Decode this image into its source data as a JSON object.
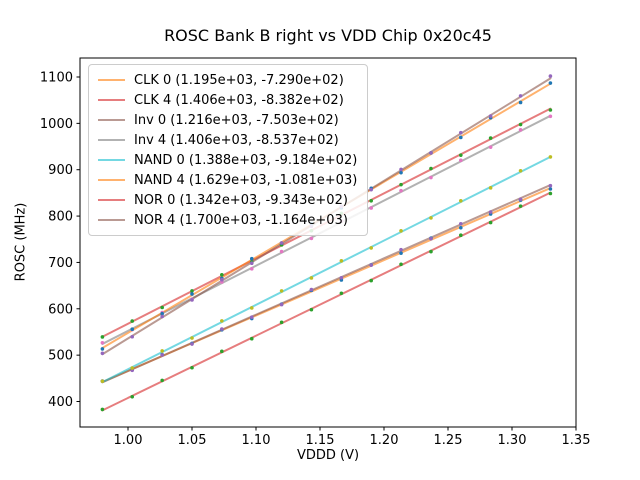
{
  "chart_data": {
    "type": "scatter",
    "title": "ROSC Bank B right vs VDD Chip 0x20c45",
    "xlabel": "VDDD (V)",
    "ylabel": "ROSC (MHz)",
    "xlim": [
      0.9625,
      1.35
    ],
    "ylim": [
      345,
      1141
    ],
    "xticks": [
      1.0,
      1.05,
      1.1,
      1.15,
      1.2,
      1.25,
      1.3,
      1.35
    ],
    "yticks": [
      400,
      500,
      600,
      700,
      800,
      900,
      1000,
      1100
    ],
    "grid": false,
    "legend_position": "upper left",
    "line_alpha": 0.6,
    "x": [
      0.98,
      1.0033,
      1.0267,
      1.05,
      1.0733,
      1.0967,
      1.12,
      1.1433,
      1.1667,
      1.19,
      1.2133,
      1.2367,
      1.26,
      1.2833,
      1.3067,
      1.33
    ],
    "series": [
      {
        "label": "CLK 0 (1.195e+03, -7.290e+02)",
        "fit": {
          "slope": 1195,
          "intercept": -729.0
        },
        "line_color": "#ff7f0e",
        "point_color": "#1f77b4",
        "y": [
          444.1,
          468.5,
          500.9,
          525.3,
          554.6,
          579.0,
          609.9,
          639.8,
          662.2,
          694.6,
          719.9,
          752.3,
          774.7,
          804.6,
          834.5,
          858.4
        ]
      },
      {
        "label": "CLK 4 (1.406e+03, -8.382e+02)",
        "fit": {
          "slope": 1406,
          "intercept": -838.2
        },
        "line_color": "#d62728",
        "point_color": "#2ca02c",
        "y": [
          539.2,
          573.5,
          602.8,
          638.6,
          673.4,
          700.7,
          738.0,
          768.3,
          805.7,
          833.0,
          867.8,
          902.6,
          931.4,
          968.2,
          997.5,
          1028.8
        ]
      },
      {
        "label": "Inv 0 (1.216e+03, -7.503e+02)",
        "fit": {
          "slope": 1216,
          "intercept": -750.3
        },
        "line_color": "#8c564b",
        "point_color": "#9467bd",
        "y": [
          443.9,
          467.3,
          500.6,
          524.0,
          556.4,
          581.8,
          609.1,
          641.5,
          666.9,
          694.2,
          727.6,
          751.0,
          783.4,
          808.7,
          836.1,
          865.5
        ]
      },
      {
        "label": "Inv 4 (1.406e+03, -8.537e+02)",
        "fit": {
          "slope": 1406,
          "intercept": -853.7
        },
        "line_color": "#7f7f7f",
        "point_color": "#e377c2",
        "y": [
          526.7,
          555.0,
          591.8,
          620.6,
          657.9,
          686.2,
          723.5,
          751.8,
          789.2,
          817.5,
          854.8,
          883.1,
          920.4,
          948.7,
          986.0,
          1015.3
        ]
      },
      {
        "label": "NAND 0 (1.388e+03, -9.184e+02)",
        "fit": {
          "slope": 1388,
          "intercept": -918.4
        },
        "line_color": "#17becf",
        "point_color": "#bcbd22",
        "y": [
          443.8,
          472.2,
          509.1,
          537.0,
          573.9,
          601.8,
          638.6,
          666.5,
          703.4,
          731.3,
          768.2,
          796.1,
          833.0,
          860.9,
          897.8,
          927.6
        ]
      },
      {
        "label": "NAND 4 (1.629e+03, -1.081e+03)",
        "fit": {
          "slope": 1629,
          "intercept": -1081
        },
        "line_color": "#ff7f0e",
        "point_color": "#1f77b4",
        "y": [
          513.4,
          555.9,
          589.4,
          632.0,
          665.5,
          708.0,
          741.5,
          784.0,
          817.5,
          860.0,
          893.6,
          936.1,
          969.6,
          1012.1,
          1045.1,
          1087.0
        ]
      },
      {
        "label": "NOR 0 (1.342e+03, -9.343e+02)",
        "fit": {
          "slope": 1342,
          "intercept": -934.3
        },
        "line_color": "#d62728",
        "point_color": "#2ca02c",
        "y": [
          382.9,
          410.2,
          445.5,
          472.8,
          508.2,
          535.5,
          570.8,
          598.1,
          633.4,
          660.8,
          696.1,
          723.4,
          758.7,
          786.0,
          821.4,
          848.7
        ]
      },
      {
        "label": "NOR 4 (1.700e+03, -1.164e+03)",
        "fit": {
          "slope": 1700,
          "intercept": -1164
        },
        "line_color": "#8c564b",
        "point_color": "#9467bd",
        "y": [
          504.0,
          539.7,
          583.3,
          619.0,
          662.7,
          698.3,
          742.0,
          777.7,
          821.3,
          857.0,
          900.7,
          936.3,
          980.0,
          1015.7,
          1059.3,
          1102.0
        ]
      }
    ]
  }
}
